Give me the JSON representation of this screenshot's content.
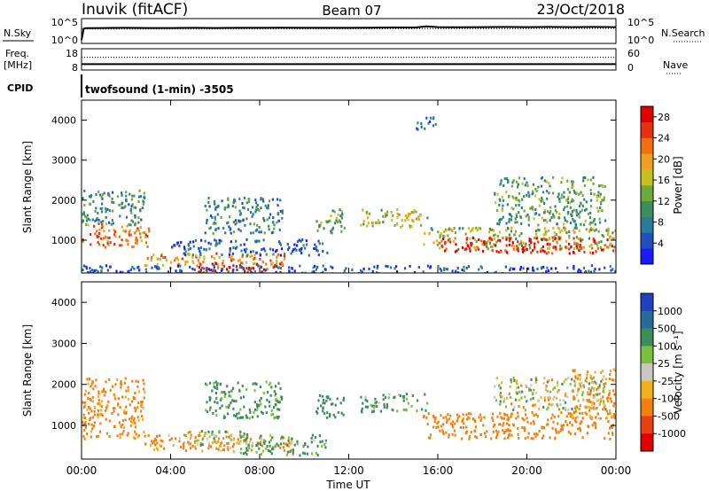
{
  "header": {
    "station": "Inuvik (fitACF)",
    "beam": "Beam 07",
    "date": "23/Oct/2018"
  },
  "noise_panel": {
    "left_label": "N.Sky",
    "left_ticks": [
      "10^5",
      "10^0"
    ],
    "right_ticks": [
      "10^5",
      "10^0"
    ],
    "right_label": "N.Search",
    "series": [
      {
        "name": "N.Sky",
        "style": "solid",
        "hours": [
          0.0,
          0.1,
          0.2,
          0.5,
          1,
          2,
          3,
          4,
          5,
          6,
          7,
          8,
          9,
          10,
          11,
          12,
          13,
          14,
          15,
          15.5,
          16,
          17,
          18,
          19,
          20,
          21,
          22,
          23,
          24
        ],
        "log_level": [
          0.0,
          3.2,
          3.3,
          3.3,
          3.35,
          3.4,
          3.35,
          3.35,
          3.4,
          3.35,
          3.4,
          3.4,
          3.45,
          3.4,
          3.4,
          3.4,
          3.45,
          3.5,
          3.5,
          3.8,
          3.6,
          3.55,
          3.6,
          3.65,
          3.6,
          3.65,
          3.6,
          3.65,
          3.6
        ]
      },
      {
        "name": "N.Search",
        "style": "dotted",
        "hours": [
          0,
          4,
          8,
          12,
          16,
          20,
          24
        ],
        "log_level": [
          3.05,
          3.05,
          3.1,
          3.1,
          3.2,
          3.2,
          3.25
        ]
      }
    ]
  },
  "freq_panel": {
    "left_label_1": "Freq.",
    "left_label_2": "[MHz]",
    "left_ticks": [
      "18",
      "8"
    ],
    "right_ticks": [
      "60",
      "0"
    ],
    "right_label": "Nave",
    "freq_MHz": 10.0,
    "nave": 38
  },
  "cpid": {
    "label": "CPID",
    "program": "twofsound (1-min) -3505"
  },
  "chart_data": [
    {
      "type": "heatmap",
      "parameter": "Power",
      "ylabel": "Slant Range [km]",
      "xlabel": "Time UT",
      "xlim_hours": [
        0,
        24
      ],
      "x_ticks": [
        "00:00",
        "04:00",
        "08:00",
        "12:00",
        "16:00",
        "20:00",
        "00:00"
      ],
      "ylim_km": [
        180,
        4500
      ],
      "y_ticks": [
        1000,
        2000,
        3000,
        4000
      ],
      "colorbar": {
        "label": "Power [dB]",
        "ticks": [
          "4",
          "8",
          "12",
          "16",
          "20",
          "24",
          "28"
        ],
        "range": [
          0,
          30
        ],
        "colors": [
          "#1a1aff",
          "#2050c0",
          "#2a7a9a",
          "#3c8c5c",
          "#6caa3c",
          "#c8c020",
          "#f0a020",
          "#f07010",
          "#e83010",
          "#e00000"
        ]
      },
      "echo_regions": [
        {
          "h0": 0.0,
          "h1": 3.0,
          "r0": 850,
          "r1": 1450,
          "level": 22
        },
        {
          "h0": 0.0,
          "h1": 2.8,
          "r0": 1400,
          "r1": 2300,
          "level": 10
        },
        {
          "h0": 2.8,
          "h1": 9.5,
          "r0": 400,
          "r1": 700,
          "level": 20
        },
        {
          "h0": 5.0,
          "h1": 9.0,
          "r0": 180,
          "r1": 450,
          "level": 27
        },
        {
          "h0": 4.0,
          "h1": 11.0,
          "r0": 650,
          "r1": 1050,
          "level": 6
        },
        {
          "h0": 5.5,
          "h1": 9.0,
          "r0": 1200,
          "r1": 2100,
          "level": 9
        },
        {
          "h0": 10.5,
          "h1": 11.8,
          "r0": 1200,
          "r1": 1800,
          "level": 12
        },
        {
          "h0": 12.5,
          "h1": 15.5,
          "r0": 1350,
          "r1": 1800,
          "level": 16
        },
        {
          "h0": 15.0,
          "h1": 16.0,
          "r0": 3800,
          "r1": 4100,
          "level": 6
        },
        {
          "h0": 15.3,
          "h1": 24.0,
          "r0": 800,
          "r1": 1350,
          "level": 15
        },
        {
          "h0": 16.0,
          "h1": 24.0,
          "r0": 700,
          "r1": 1100,
          "level": 27
        },
        {
          "h0": 18.5,
          "h1": 23.5,
          "r0": 1400,
          "r1": 2600,
          "level": 11
        },
        {
          "h0": 0.0,
          "h1": 24.0,
          "r0": 180,
          "r1": 400,
          "level": 5
        }
      ]
    },
    {
      "type": "heatmap",
      "parameter": "Velocity",
      "ylabel": "Slant Range [km]",
      "xlabel": "Time UT",
      "xlim_hours": [
        0,
        24
      ],
      "x_ticks": [
        "00:00",
        "04:00",
        "08:00",
        "12:00",
        "16:00",
        "20:00",
        "00:00"
      ],
      "ylim_km": [
        180,
        4500
      ],
      "y_ticks": [
        1000,
        2000,
        3000,
        4000
      ],
      "colorbar": {
        "label": "Velocity [m s⁻¹]",
        "ticks": [
          "1000",
          "500",
          "100",
          "25",
          "-25",
          "-100",
          "-500",
          "-1000"
        ],
        "colors": [
          "#2040c0",
          "#2a6a9a",
          "#3c8c5c",
          "#7ac040",
          "#c8c8c0",
          "#f0b020",
          "#f08010",
          "#e84010",
          "#e00000"
        ]
      },
      "echo_regions": [
        {
          "h0": 0.0,
          "h1": 2.8,
          "r0": 700,
          "r1": 2200,
          "velocity": -200
        },
        {
          "h0": 2.8,
          "h1": 9.5,
          "r0": 400,
          "r1": 800,
          "velocity": -150
        },
        {
          "h0": 4.5,
          "h1": 7.5,
          "r0": 500,
          "r1": 900,
          "velocity": 0
        },
        {
          "h0": 5.5,
          "h1": 9.0,
          "r0": 1200,
          "r1": 2100,
          "velocity": 200
        },
        {
          "h0": 7.0,
          "h1": 11.0,
          "r0": 300,
          "r1": 800,
          "velocity": 150
        },
        {
          "h0": 10.5,
          "h1": 11.8,
          "r0": 1200,
          "r1": 1800,
          "velocity": 300
        },
        {
          "h0": 12.5,
          "h1": 15.5,
          "r0": 1350,
          "r1": 1800,
          "velocity": 150
        },
        {
          "h0": 15.3,
          "h1": 24.0,
          "r0": 700,
          "r1": 1350,
          "velocity": -300
        },
        {
          "h0": 18.5,
          "h1": 23.5,
          "r0": 1400,
          "r1": 2200,
          "velocity": 0
        },
        {
          "h0": 22.0,
          "h1": 24.0,
          "r0": 1200,
          "r1": 2400,
          "velocity": -150
        }
      ]
    }
  ]
}
